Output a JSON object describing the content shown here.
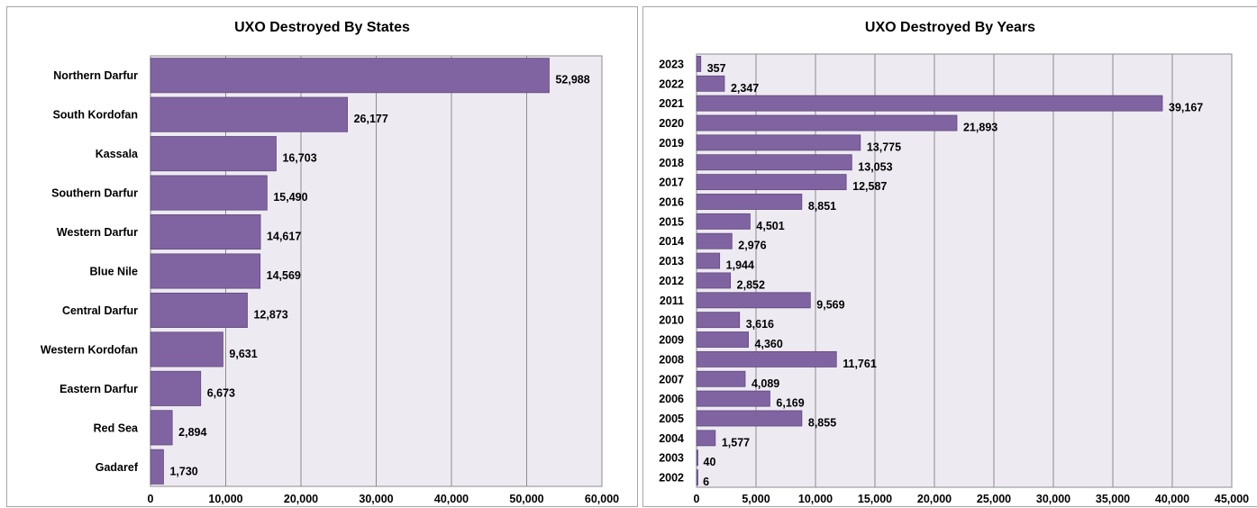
{
  "chart_data": [
    {
      "type": "bar",
      "orientation": "horizontal",
      "title": "UXO Destroyed By States",
      "categories": [
        "Northern Darfur",
        "South Kordofan",
        "Kassala",
        "Southern Darfur",
        "Western Darfur",
        "Blue Nile",
        "Central Darfur",
        "Western Kordofan",
        "Eastern Darfur",
        "Red Sea",
        "Gadaref"
      ],
      "values": [
        52988,
        26177,
        16703,
        15490,
        14617,
        14569,
        12873,
        9631,
        6673,
        2894,
        1730
      ],
      "value_labels": [
        "52,988",
        "26,177",
        "16,703",
        "15,490",
        "14,617",
        "14,569",
        "12,873",
        "9,631",
        "6,673",
        "2,894",
        "1,730"
      ],
      "xlim": [
        0,
        60000
      ],
      "xticks": [
        0,
        10000,
        20000,
        30000,
        40000,
        50000,
        60000
      ],
      "xtick_labels": [
        "0",
        "10,000",
        "20,000",
        "30,000",
        "40,000",
        "50,000",
        "60,000"
      ],
      "grid": true,
      "color": "#8064a2"
    },
    {
      "type": "bar",
      "orientation": "horizontal",
      "title": "UXO Destroyed By Years",
      "categories": [
        "2023",
        "2022",
        "2021",
        "2020",
        "2019",
        "2018",
        "2017",
        "2016",
        "2015",
        "2014",
        "2013",
        "2012",
        "2011",
        "2010",
        "2009",
        "2008",
        "2007",
        "2006",
        "2005",
        "2004",
        "2003",
        "2002"
      ],
      "values": [
        357,
        2347,
        39167,
        21893,
        13775,
        13053,
        12587,
        8851,
        4501,
        2976,
        1944,
        2852,
        9569,
        3616,
        4360,
        11761,
        4089,
        6169,
        8855,
        1577,
        40,
        6
      ],
      "value_labels": [
        "357",
        "2,347",
        "39,167",
        "21,893",
        "13,775",
        "13,053",
        "12,587",
        "8,851",
        "4,501",
        "2,976",
        "1,944",
        "2,852",
        "9,569",
        "3,616",
        "4,360",
        "11,761",
        "4,089",
        "6,169",
        "8,855",
        "1,577",
        "40",
        "6"
      ],
      "xlim": [
        0,
        45000
      ],
      "xticks": [
        0,
        5000,
        10000,
        15000,
        20000,
        25000,
        30000,
        35000,
        40000,
        45000
      ],
      "xtick_labels": [
        "0",
        "5,000",
        "10,000",
        "15,000",
        "20,000",
        "25,000",
        "30,000",
        "35,000",
        "40,000",
        "45,000"
      ],
      "grid": true,
      "color": "#8064a2"
    }
  ]
}
